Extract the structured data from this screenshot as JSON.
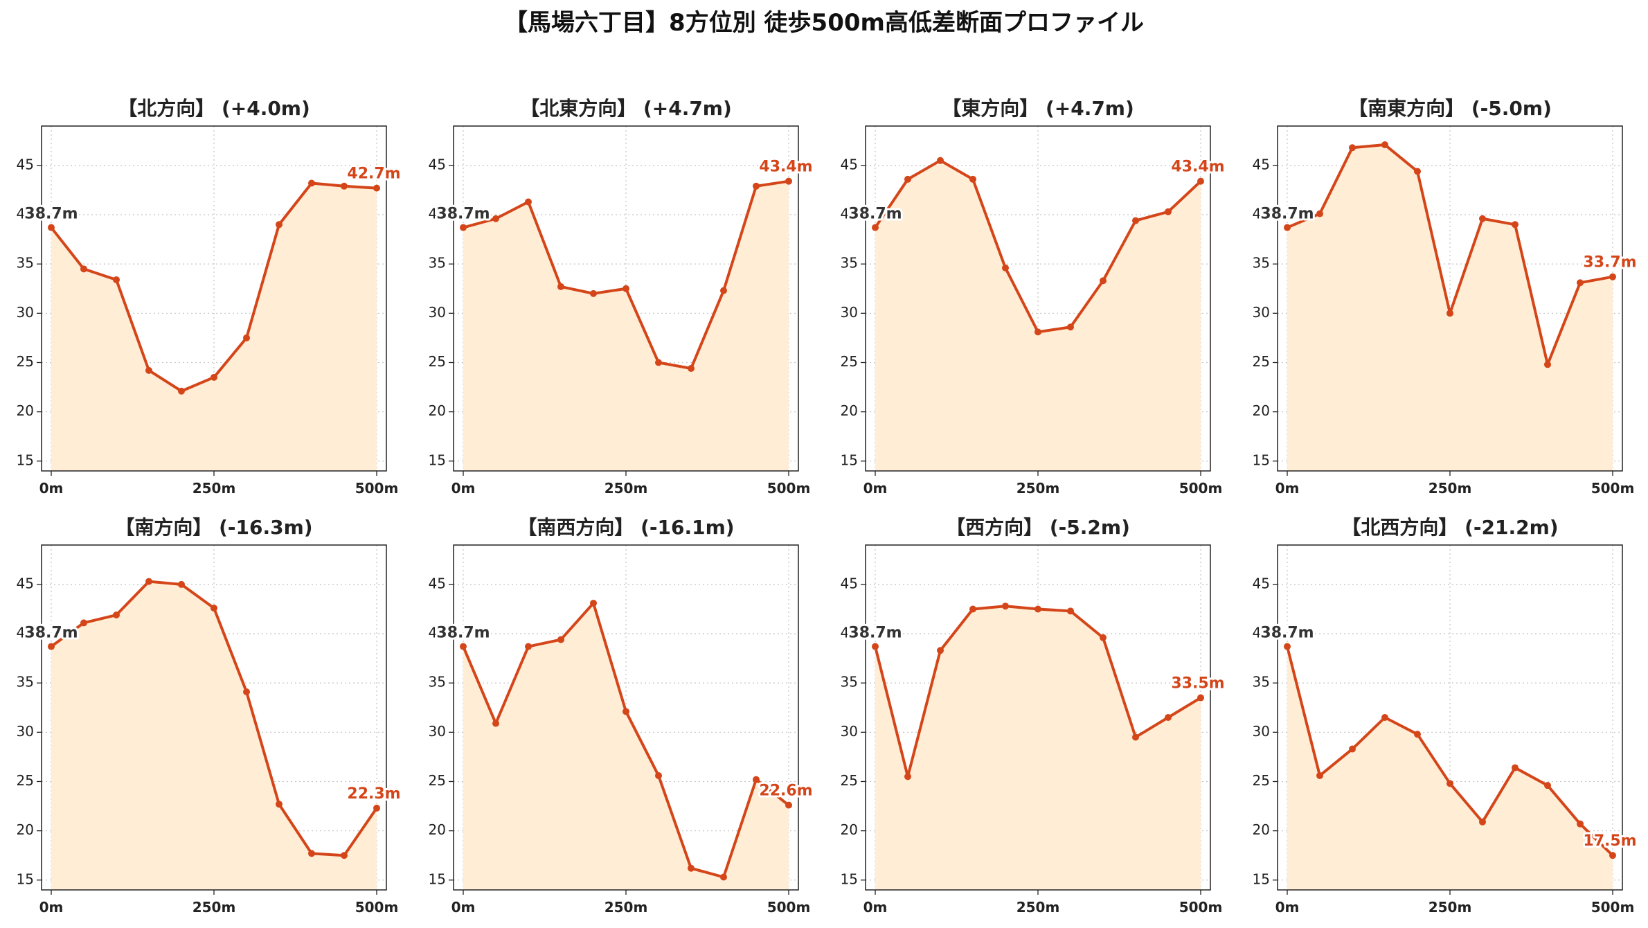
{
  "title": "【馬場六丁目】8方位別 徒歩500m高低差断面プロファイル",
  "colors": {
    "line": "#d4461a",
    "fill": "#ffedd5",
    "start_label": "#333333",
    "end_label": "#d4461a"
  },
  "chart_data": [
    {
      "type": "area",
      "title": "【北方向】 (+4.0m)",
      "x": [
        0,
        50,
        100,
        150,
        200,
        250,
        300,
        350,
        400,
        450,
        500
      ],
      "values": [
        38.7,
        34.5,
        33.4,
        24.2,
        22.1,
        23.5,
        27.5,
        39.0,
        43.2,
        42.9,
        42.7
      ],
      "xticks": [
        "0m",
        "250m",
        "500m"
      ],
      "ylim": [
        14,
        49
      ],
      "yticks": [
        15,
        20,
        25,
        30,
        35,
        40,
        45
      ],
      "start_label": "38.7m",
      "end_label": "42.7m",
      "grid": true
    },
    {
      "type": "area",
      "title": "【北東方向】 (+4.7m)",
      "x": [
        0,
        50,
        100,
        150,
        200,
        250,
        300,
        350,
        400,
        450,
        500
      ],
      "values": [
        38.7,
        39.6,
        41.3,
        32.7,
        32.0,
        32.5,
        25.0,
        24.4,
        32.3,
        42.9,
        43.4
      ],
      "xticks": [
        "0m",
        "250m",
        "500m"
      ],
      "ylim": [
        14,
        49
      ],
      "yticks": [
        15,
        20,
        25,
        30,
        35,
        40,
        45
      ],
      "start_label": "38.7m",
      "end_label": "43.4m",
      "grid": true
    },
    {
      "type": "area",
      "title": "【東方向】 (+4.7m)",
      "x": [
        0,
        50,
        100,
        150,
        200,
        250,
        300,
        350,
        400,
        450,
        500
      ],
      "values": [
        38.7,
        43.6,
        45.5,
        43.6,
        34.6,
        28.1,
        28.6,
        33.3,
        39.4,
        40.3,
        43.4
      ],
      "xticks": [
        "0m",
        "250m",
        "500m"
      ],
      "ylim": [
        14,
        49
      ],
      "yticks": [
        15,
        20,
        25,
        30,
        35,
        40,
        45
      ],
      "start_label": "38.7m",
      "end_label": "43.4m",
      "grid": true
    },
    {
      "type": "area",
      "title": "【南東方向】 (-5.0m)",
      "x": [
        0,
        50,
        100,
        150,
        200,
        250,
        300,
        350,
        400,
        450,
        500
      ],
      "values": [
        38.7,
        40.1,
        46.8,
        47.1,
        44.4,
        30.0,
        39.6,
        39.0,
        24.8,
        33.1,
        33.7
      ],
      "xticks": [
        "0m",
        "250m",
        "500m"
      ],
      "ylim": [
        14,
        49
      ],
      "yticks": [
        15,
        20,
        25,
        30,
        35,
        40,
        45
      ],
      "start_label": "38.7m",
      "end_label": "33.7m",
      "grid": true
    },
    {
      "type": "area",
      "title": "【南方向】 (-16.3m)",
      "x": [
        0,
        50,
        100,
        150,
        200,
        250,
        300,
        350,
        400,
        450,
        500
      ],
      "values": [
        38.7,
        41.1,
        41.9,
        45.3,
        45.0,
        42.6,
        34.1,
        22.7,
        17.7,
        17.5,
        22.3
      ],
      "xticks": [
        "0m",
        "250m",
        "500m"
      ],
      "ylim": [
        14,
        49
      ],
      "yticks": [
        15,
        20,
        25,
        30,
        35,
        40,
        45
      ],
      "start_label": "38.7m",
      "end_label": "22.3m",
      "grid": true
    },
    {
      "type": "area",
      "title": "【南西方向】 (-16.1m)",
      "x": [
        0,
        50,
        100,
        150,
        200,
        250,
        300,
        350,
        400,
        450,
        500
      ],
      "values": [
        38.7,
        30.9,
        38.7,
        39.4,
        43.1,
        32.1,
        25.6,
        16.2,
        15.3,
        25.2,
        22.6
      ],
      "xticks": [
        "0m",
        "250m",
        "500m"
      ],
      "ylim": [
        14,
        49
      ],
      "yticks": [
        15,
        20,
        25,
        30,
        35,
        40,
        45
      ],
      "start_label": "38.7m",
      "end_label": "22.6m",
      "grid": true
    },
    {
      "type": "area",
      "title": "【西方向】 (-5.2m)",
      "x": [
        0,
        50,
        100,
        150,
        200,
        250,
        300,
        350,
        400,
        450,
        500
      ],
      "values": [
        38.7,
        25.5,
        38.3,
        42.5,
        42.8,
        42.5,
        42.3,
        39.6,
        29.5,
        31.5,
        33.5
      ],
      "xticks": [
        "0m",
        "250m",
        "500m"
      ],
      "ylim": [
        14,
        49
      ],
      "yticks": [
        15,
        20,
        25,
        30,
        35,
        40,
        45
      ],
      "start_label": "38.7m",
      "end_label": "33.5m",
      "grid": true
    },
    {
      "type": "area",
      "title": "【北西方向】 (-21.2m)",
      "x": [
        0,
        50,
        100,
        150,
        200,
        250,
        300,
        350,
        400,
        450,
        500
      ],
      "values": [
        38.7,
        25.6,
        28.3,
        31.5,
        29.8,
        24.8,
        20.9,
        26.4,
        24.6,
        20.7,
        17.5
      ],
      "xticks": [
        "0m",
        "250m",
        "500m"
      ],
      "ylim": [
        14,
        49
      ],
      "yticks": [
        15,
        20,
        25,
        30,
        35,
        40,
        45
      ],
      "start_label": "38.7m",
      "end_label": "17.5m",
      "grid": true
    }
  ]
}
